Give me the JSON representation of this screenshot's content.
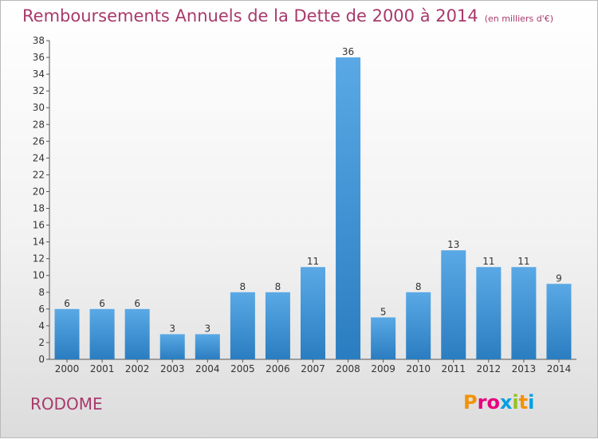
{
  "header": {
    "title": "Remboursements Annuels de la Dette de 2000 à 2014",
    "unit": "(en milliers d'€)"
  },
  "footer": {
    "place": "RODOME",
    "logo": "Proxiti"
  },
  "colors": {
    "bar_top": "#5aa9e6",
    "bar_bottom": "#2a7dc0",
    "title": "#a8396b",
    "logo_letters": [
      "#f39200",
      "#e6007e",
      "#e6007e",
      "#009fe3",
      "#95c11f",
      "#f39200",
      "#009fe3"
    ]
  },
  "chart_data": {
    "type": "bar",
    "categories": [
      "2000",
      "2001",
      "2002",
      "2003",
      "2004",
      "2005",
      "2006",
      "2007",
      "2008",
      "2009",
      "2010",
      "2011",
      "2012",
      "2013",
      "2014"
    ],
    "values": [
      6,
      6,
      6,
      3,
      3,
      8,
      8,
      11,
      36,
      5,
      8,
      13,
      11,
      11,
      9
    ],
    "title": "Remboursements Annuels de la Dette de 2000 à 2014",
    "xlabel": "",
    "ylabel": "",
    "ylim": [
      0,
      38
    ],
    "yticks": [
      0,
      2,
      4,
      6,
      8,
      10,
      12,
      14,
      16,
      18,
      20,
      22,
      24,
      26,
      28,
      30,
      32,
      34,
      36,
      38
    ],
    "grid": false,
    "data_labels": true
  }
}
